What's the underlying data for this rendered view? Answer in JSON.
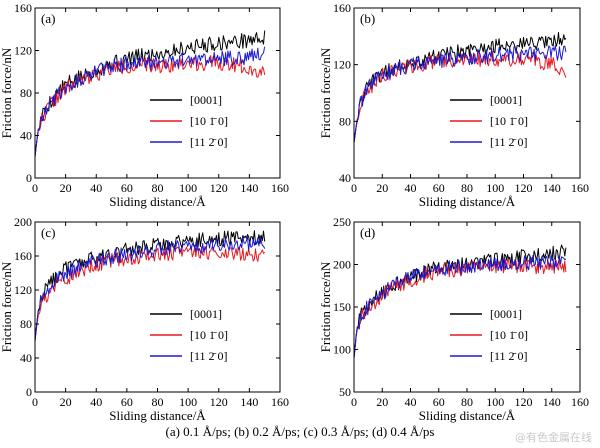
{
  "chart_data": [
    {
      "type": "line",
      "panel_label": "(a)",
      "xlabel": "Sliding distance/Å",
      "ylabel": "Friction force/nN",
      "xlim": [
        0,
        160
      ],
      "ylim": [
        0,
        160
      ],
      "xticks": [
        0,
        20,
        40,
        60,
        80,
        100,
        120,
        140,
        160
      ],
      "yticks": [
        0,
        40,
        80,
        120,
        160
      ],
      "legend_position": "bottom-right",
      "series": [
        {
          "name": "[0001]",
          "color": "#000000",
          "x": [
            0,
            2,
            5,
            10,
            20,
            30,
            40,
            50,
            60,
            70,
            80,
            90,
            100,
            110,
            120,
            130,
            140,
            150
          ],
          "y": [
            20,
            45,
            60,
            72,
            88,
            95,
            102,
            108,
            112,
            115,
            117,
            120,
            123,
            125,
            127,
            128,
            130,
            132
          ]
        },
        {
          "name": "[10 1̄ 0]",
          "color": "#e8191e",
          "x": [
            0,
            2,
            5,
            10,
            20,
            30,
            40,
            50,
            60,
            70,
            80,
            90,
            100,
            110,
            120,
            130,
            140,
            150
          ],
          "y": [
            20,
            44,
            58,
            70,
            84,
            92,
            98,
            103,
            105,
            106,
            106,
            107,
            108,
            108,
            108,
            107,
            104,
            98
          ]
        },
        {
          "name": "[11 2̄ 0]",
          "color": "#1a1ad0",
          "x": [
            0,
            2,
            5,
            10,
            20,
            30,
            40,
            50,
            60,
            70,
            80,
            90,
            100,
            110,
            120,
            130,
            140,
            150
          ],
          "y": [
            20,
            45,
            59,
            71,
            86,
            94,
            100,
            105,
            107,
            108,
            109,
            110,
            111,
            112,
            112,
            113,
            114,
            118
          ]
        }
      ]
    },
    {
      "type": "line",
      "panel_label": "(b)",
      "xlabel": "Sliding distance/Å",
      "ylabel": "Friction force/nN",
      "xlim": [
        0,
        160
      ],
      "ylim": [
        40,
        160
      ],
      "xticks": [
        0,
        20,
        40,
        60,
        80,
        100,
        120,
        140,
        160
      ],
      "yticks": [
        40,
        80,
        120,
        160
      ],
      "legend_position": "bottom-right",
      "series": [
        {
          "name": "[0001]",
          "color": "#000000",
          "x": [
            0,
            2,
            5,
            10,
            20,
            30,
            40,
            50,
            60,
            70,
            80,
            90,
            100,
            110,
            120,
            130,
            140,
            150
          ],
          "y": [
            65,
            80,
            95,
            105,
            114,
            118,
            121,
            124,
            126,
            128,
            130,
            132,
            133,
            134,
            135,
            136,
            137,
            138
          ]
        },
        {
          "name": "[10 1̄ 0]",
          "color": "#e8191e",
          "x": [
            0,
            2,
            5,
            10,
            20,
            30,
            40,
            50,
            60,
            70,
            80,
            90,
            100,
            110,
            120,
            130,
            140,
            150
          ],
          "y": [
            65,
            79,
            93,
            103,
            112,
            116,
            119,
            121,
            122,
            123,
            123,
            124,
            124,
            124,
            124,
            123,
            120,
            116
          ]
        },
        {
          "name": "[11 2̄ 0]",
          "color": "#1a1ad0",
          "x": [
            0,
            2,
            5,
            10,
            20,
            30,
            40,
            50,
            60,
            70,
            80,
            90,
            100,
            110,
            120,
            130,
            140,
            150
          ],
          "y": [
            65,
            80,
            94,
            104,
            113,
            117,
            120,
            122,
            123,
            124,
            125,
            126,
            127,
            127,
            128,
            128,
            128,
            129
          ]
        }
      ]
    },
    {
      "type": "line",
      "panel_label": "(c)",
      "xlabel": "Sliding distance/Å",
      "ylabel": "Friction force/nN",
      "xlim": [
        0,
        160
      ],
      "ylim": [
        0,
        200
      ],
      "xticks": [
        0,
        20,
        40,
        60,
        80,
        100,
        120,
        140,
        160
      ],
      "yticks": [
        0,
        40,
        80,
        120,
        160,
        200
      ],
      "legend_position": "bottom-right",
      "series": [
        {
          "name": "[0001]",
          "color": "#000000",
          "x": [
            0,
            2,
            5,
            10,
            20,
            30,
            40,
            50,
            60,
            70,
            80,
            90,
            100,
            110,
            120,
            130,
            140,
            150
          ],
          "y": [
            60,
            95,
            115,
            130,
            145,
            152,
            158,
            163,
            167,
            170,
            173,
            176,
            178,
            179,
            180,
            181,
            182,
            183
          ]
        },
        {
          "name": "[10 1̄ 0]",
          "color": "#e8191e",
          "x": [
            0,
            2,
            5,
            10,
            20,
            30,
            40,
            50,
            60,
            70,
            80,
            90,
            100,
            110,
            120,
            130,
            140,
            150
          ],
          "y": [
            60,
            90,
            108,
            120,
            134,
            142,
            150,
            155,
            158,
            160,
            162,
            164,
            165,
            165,
            165,
            164,
            163,
            162
          ]
        },
        {
          "name": "[11 2̄ 0]",
          "color": "#1a1ad0",
          "x": [
            0,
            2,
            5,
            10,
            20,
            30,
            40,
            50,
            60,
            70,
            80,
            90,
            100,
            110,
            120,
            130,
            140,
            150
          ],
          "y": [
            60,
            94,
            112,
            126,
            140,
            148,
            154,
            159,
            162,
            165,
            168,
            170,
            171,
            172,
            172,
            173,
            174,
            176
          ]
        }
      ]
    },
    {
      "type": "line",
      "panel_label": "(d)",
      "xlabel": "Sliding distance/Å",
      "ylabel": "Friction force/nN",
      "xlim": [
        0,
        160
      ],
      "ylim": [
        50,
        250
      ],
      "xticks": [
        0,
        20,
        40,
        60,
        80,
        100,
        120,
        140,
        160
      ],
      "yticks": [
        50,
        100,
        150,
        200,
        250
      ],
      "legend_position": "bottom-right",
      "series": [
        {
          "name": "[0001]",
          "color": "#000000",
          "x": [
            0,
            2,
            5,
            10,
            20,
            30,
            40,
            50,
            60,
            70,
            80,
            90,
            100,
            110,
            120,
            130,
            140,
            150
          ],
          "y": [
            90,
            125,
            140,
            152,
            168,
            178,
            186,
            192,
            196,
            199,
            201,
            203,
            205,
            207,
            209,
            211,
            213,
            215
          ]
        },
        {
          "name": "[10 1̄ 0]",
          "color": "#e8191e",
          "x": [
            0,
            2,
            5,
            10,
            20,
            30,
            40,
            50,
            60,
            70,
            80,
            90,
            100,
            110,
            120,
            130,
            140,
            150
          ],
          "y": [
            90,
            122,
            137,
            149,
            164,
            174,
            182,
            188,
            192,
            194,
            195,
            196,
            197,
            198,
            198,
            198,
            197,
            196
          ]
        },
        {
          "name": "[11 2̄ 0]",
          "color": "#1a1ad0",
          "x": [
            0,
            2,
            5,
            10,
            20,
            30,
            40,
            50,
            60,
            70,
            80,
            90,
            100,
            110,
            120,
            130,
            140,
            150
          ],
          "y": [
            90,
            124,
            139,
            151,
            166,
            176,
            184,
            190,
            194,
            196,
            198,
            199,
            200,
            201,
            202,
            202,
            203,
            203
          ]
        }
      ]
    }
  ],
  "caption": "(a) 0.1 Å/ps; (b) 0.2 Å/ps; (c) 0.3 Å/ps; (d) 0.4 Å/ps",
  "watermark": "@有色金属在线"
}
